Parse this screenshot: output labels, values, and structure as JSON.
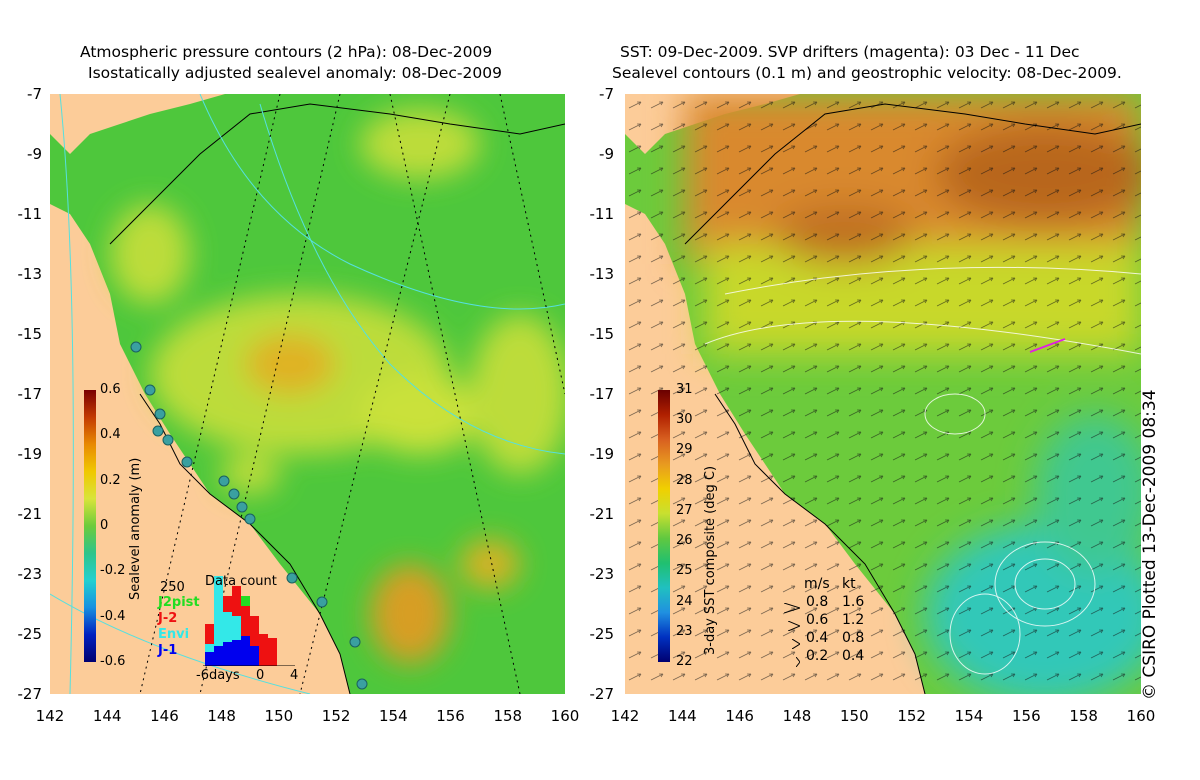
{
  "left_panel": {
    "title_line1": "Atmospheric pressure contours (2 hPa): 08-Dec-2009",
    "title_line2": "Isostatically adjusted sealevel anomaly: 08-Dec-2009",
    "colorbar": {
      "label": "Sealevel anomaly (m)",
      "ticks": [
        "0.6",
        "0.4",
        "0.2",
        "0",
        "-0.2",
        "-0.4",
        "-0.6"
      ]
    },
    "histogram": {
      "title": "Data count",
      "ymax_label": "250",
      "legend": [
        {
          "name": "J2pist",
          "color": "#22dd22"
        },
        {
          "name": "J-2",
          "color": "#ee1111"
        },
        {
          "name": "Envi",
          "color": "#33e8e8"
        },
        {
          "name": "J-1",
          "color": "#0000ee"
        }
      ],
      "xlabels": [
        "-6days",
        "0",
        "4"
      ]
    }
  },
  "right_panel": {
    "title_line1": "SST: 09-Dec-2009. SVP drifters (magenta): 03 Dec - 11 Dec",
    "title_line2": "Sealevel contours (0.1 m) and geostrophic velocity: 08-Dec-2009.",
    "colorbar": {
      "label": "3-day SST composite (deg C)",
      "ticks": [
        "31",
        "30",
        "29",
        "28",
        "27",
        "26",
        "25",
        "24",
        "23",
        "22"
      ]
    },
    "velocity_legend": {
      "header_ms": "m/s",
      "header_kt": "kt",
      "rows": [
        {
          "ms": "0.8",
          "kt": "1.6"
        },
        {
          "ms": "0.6",
          "kt": "1.2"
        },
        {
          "ms": "0.4",
          "kt": "0.8"
        },
        {
          "ms": "0.2",
          "kt": "0.4"
        }
      ]
    }
  },
  "y_axis_labels": [
    "-7",
    "-9",
    "-11",
    "-13",
    "-15",
    "-17",
    "-19",
    "-21",
    "-23",
    "-25",
    "-27"
  ],
  "x_axis_labels": [
    "142",
    "144",
    "146",
    "148",
    "150",
    "152",
    "154",
    "156",
    "158",
    "160"
  ],
  "credit": "© CSIRO Plotted 13-Dec-2009 08:34",
  "colors": {
    "land": "#fccc99",
    "ocean_green": "#4ec73c",
    "anomaly_yellow": "#d8e43a",
    "sst_orange": "#d9892f",
    "sst_cyan": "#30c8b8"
  }
}
